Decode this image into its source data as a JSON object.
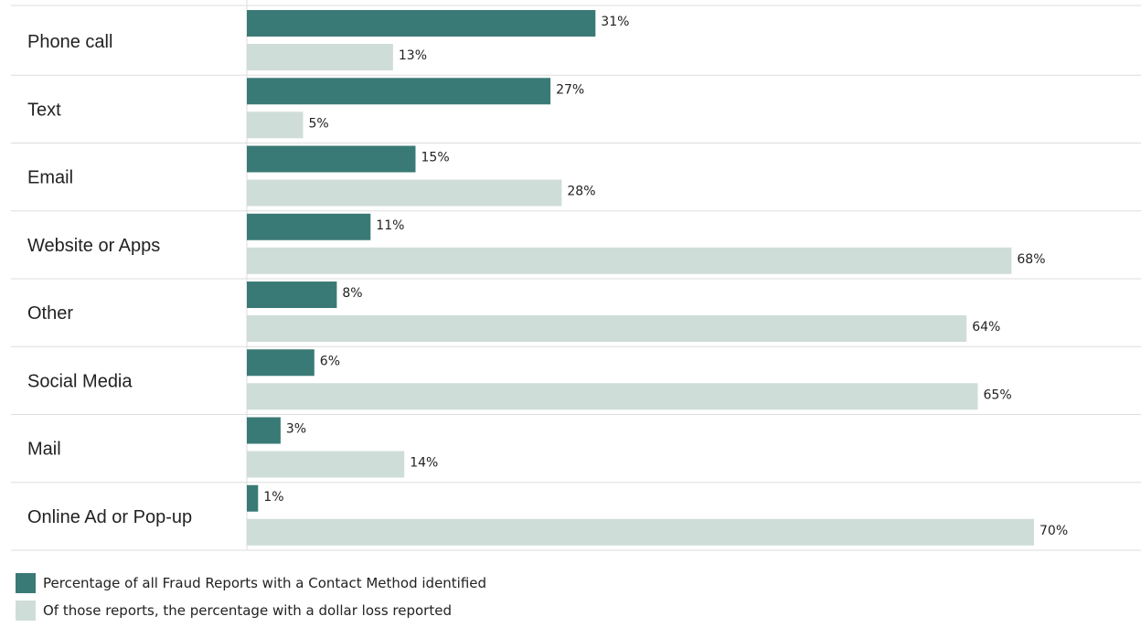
{
  "chart_data": {
    "type": "bar",
    "orientation": "horizontal",
    "categories": [
      "Phone call",
      "Text",
      "Email",
      "Website or Apps",
      "Other",
      "Social Media",
      "Mail",
      "Online Ad or Pop-up"
    ],
    "series": [
      {
        "name": "Percentage of all Fraud Reports with a Contact Method identified",
        "values": [
          31,
          27,
          15,
          11,
          8,
          6,
          3,
          1
        ],
        "labels": [
          "31%",
          "27%",
          "15%",
          "11%",
          "8%",
          "6%",
          "3%",
          "1%"
        ],
        "color": "#3a7a76"
      },
      {
        "name": "Of those reports, the percentage with a dollar loss reported",
        "values": [
          13,
          5,
          28,
          68,
          64,
          65,
          14,
          70
        ],
        "labels": [
          "13%",
          "5%",
          "28%",
          "68%",
          "64%",
          "65%",
          "14%",
          "70%"
        ],
        "color": "#cfddd8"
      }
    ],
    "xlim": [
      0,
      100
    ],
    "grid": false,
    "legend_position": "bottom-left"
  }
}
